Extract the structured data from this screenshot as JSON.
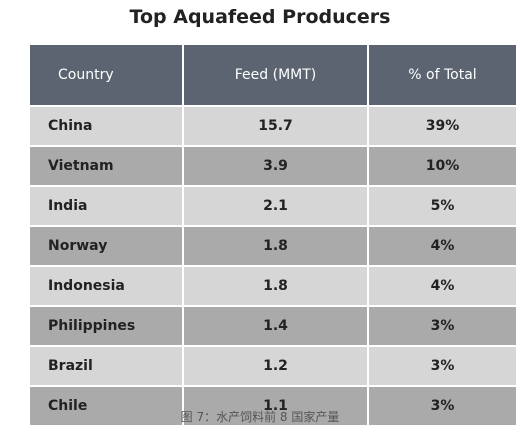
{
  "header": {
    "title": "Top Aquafeed Producers"
  },
  "table": {
    "columns": [
      "Country",
      "Feed (MMT)",
      "% of Total"
    ],
    "rows": [
      [
        "China",
        "15.7",
        "39%"
      ],
      [
        "Vietnam",
        "3.9",
        "10%"
      ],
      [
        "India",
        "2.1",
        "5%"
      ],
      [
        "Norway",
        "1.8",
        "4%"
      ],
      [
        "Indonesia",
        "1.8",
        "4%"
      ],
      [
        "Philippines",
        "1.4",
        "3%"
      ],
      [
        "Brazil",
        "1.2",
        "3%"
      ],
      [
        "Chile",
        "1.1",
        "3%"
      ]
    ]
  },
  "caption": "图 7：水产饲料前 8 国家产量"
}
